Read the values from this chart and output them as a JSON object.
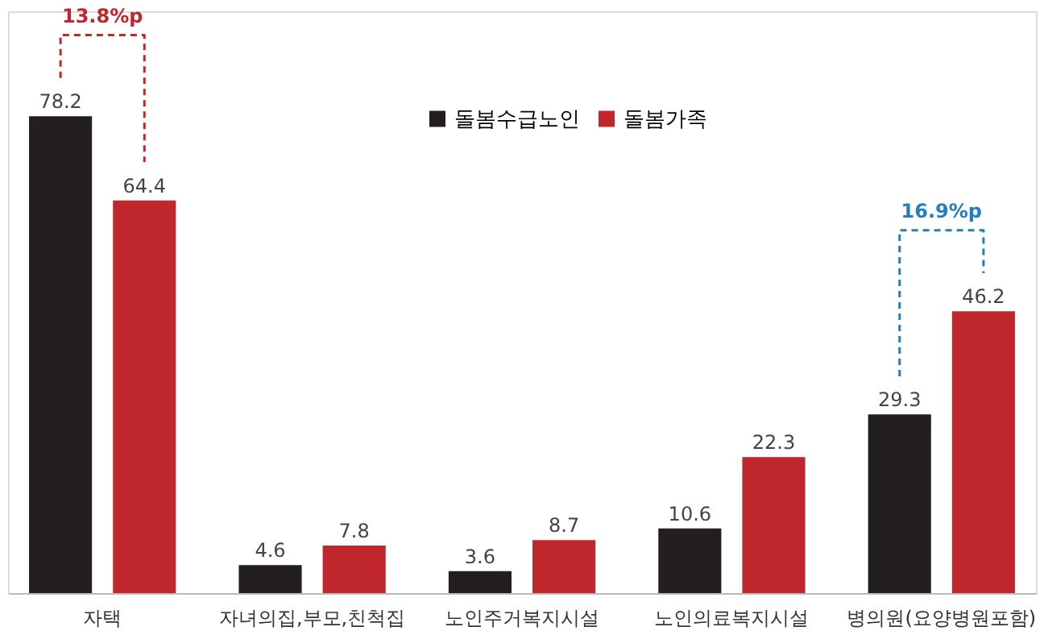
{
  "chart_data": {
    "type": "bar",
    "categories": [
      "자택",
      "자녀의집,부모,친척집",
      "노인주거복지시설",
      "노인의료복지시설",
      "병의원(요양병원포함)"
    ],
    "series": [
      {
        "name": "돌봄수급노인",
        "color": "#231f20",
        "values": [
          78.2,
          4.6,
          3.6,
          10.6,
          29.3
        ]
      },
      {
        "name": "돌봄가족",
        "color": "#c0272d",
        "values": [
          64.4,
          7.8,
          8.7,
          22.3,
          46.2
        ]
      }
    ],
    "data_labels": true,
    "legend": "top",
    "grid": false,
    "annotations": [
      "13.8%p",
      "16.9%p"
    ]
  }
}
